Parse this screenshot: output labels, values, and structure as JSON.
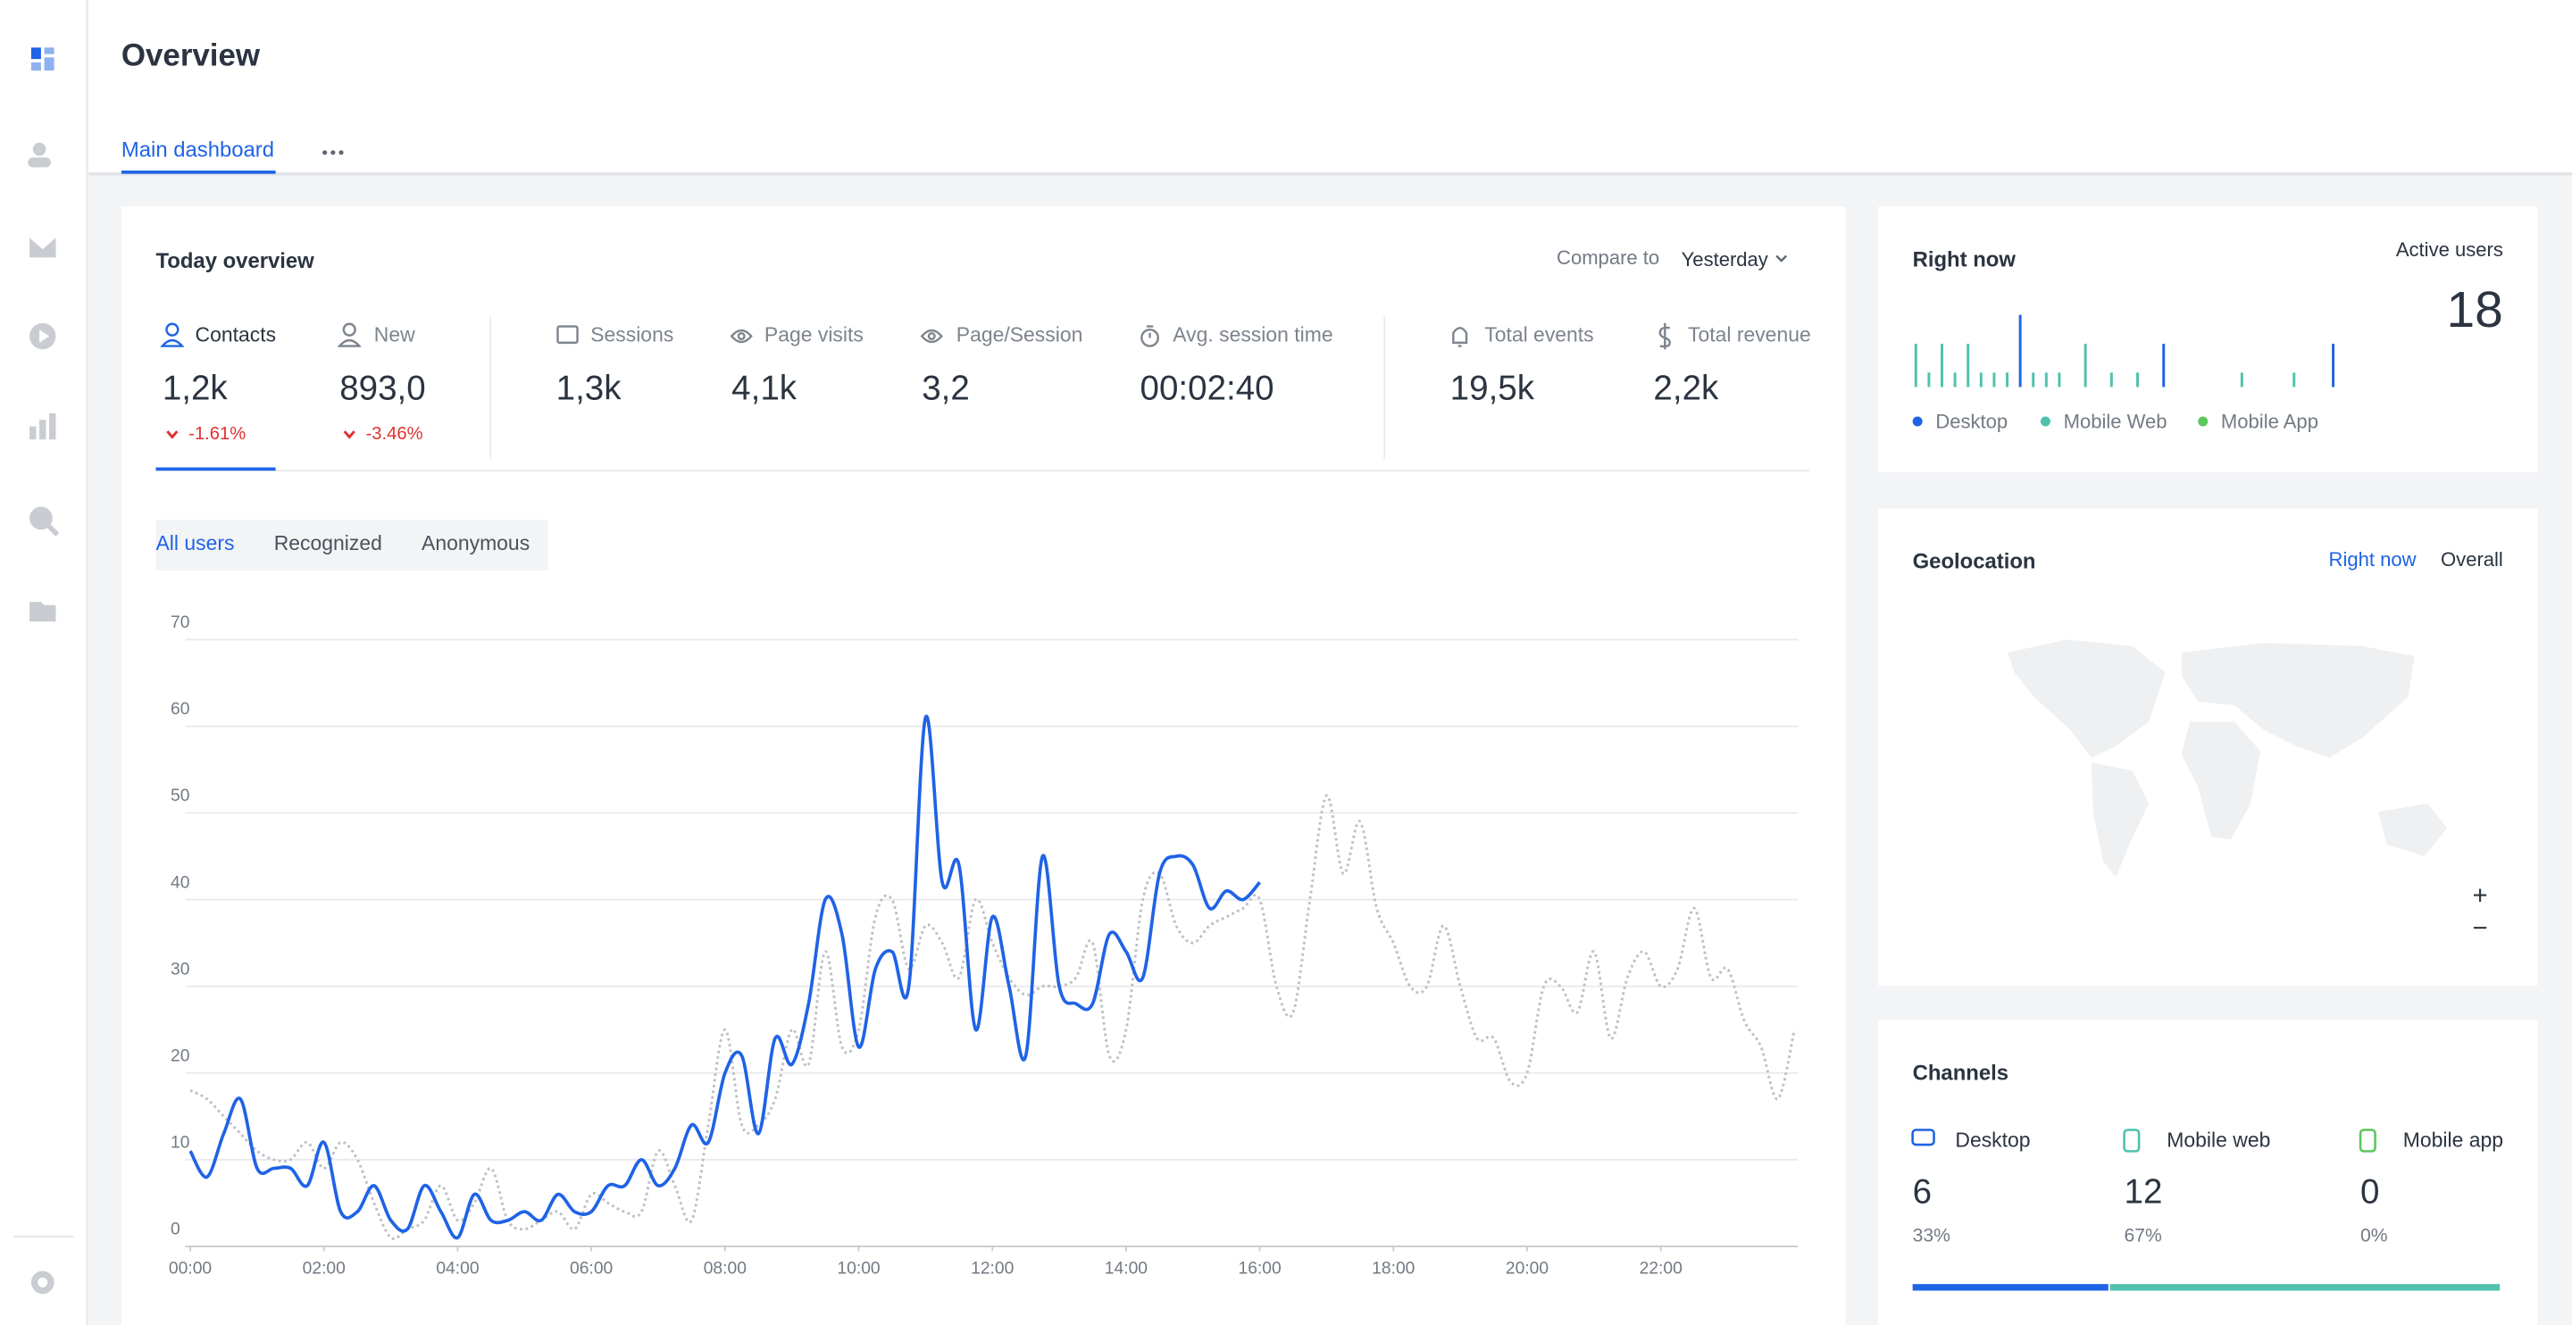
{
  "header": {
    "title": "Overview"
  },
  "tabs": [
    "Main dashboard"
  ],
  "today_overview": {
    "title": "Today overview",
    "compare_label": "Compare to",
    "compare_value": "Yesterday",
    "metrics": [
      {
        "label": "Contacts",
        "value": "1,2k",
        "change": "-1.61%"
      },
      {
        "label": "New",
        "value": "893,0",
        "change": "-3.46%"
      },
      {
        "label": "Sessions",
        "value": "1,3k"
      },
      {
        "label": "Page visits",
        "value": "4,1k"
      },
      {
        "label": "Page/Session",
        "value": "3,2"
      },
      {
        "label": "Avg. session time",
        "value": "00:02:40"
      },
      {
        "label": "Total events",
        "value": "19,5k"
      },
      {
        "label": "Total revenue",
        "value": "2,2k"
      }
    ]
  },
  "segments": [
    "All users",
    "Recognized",
    "Anonymous"
  ],
  "chart_data": {
    "type": "line",
    "x": [
      0,
      0.25,
      0.5,
      0.75,
      1,
      1.25,
      1.5,
      1.75,
      2,
      2.25,
      2.5,
      2.75,
      3,
      3.25,
      3.5,
      3.75,
      4,
      4.25,
      4.5,
      4.75,
      5,
      5.25,
      5.5,
      5.75,
      6,
      6.25,
      6.5,
      6.75,
      7,
      7.25,
      7.5,
      7.75,
      8,
      8.25,
      8.5,
      8.75,
      9,
      9.25,
      9.5,
      9.75,
      10,
      10.25,
      10.5,
      10.75,
      11,
      11.25,
      11.5,
      11.75,
      12,
      12.25,
      12.5,
      12.75,
      13,
      13.25,
      13.5,
      13.75,
      14,
      14.25,
      14.5,
      14.75,
      15,
      15.25,
      15.5,
      15.75,
      16,
      16.25,
      16.5,
      16.75,
      17,
      17.25,
      17.5,
      17.75,
      18,
      18.25,
      18.5,
      18.75,
      19,
      19.25,
      19.5,
      19.75,
      20,
      20.25,
      20.5,
      20.75,
      21,
      21.25,
      21.5,
      21.75,
      22,
      22.25,
      22.5,
      22.75,
      23,
      23.25,
      23.5,
      23.75,
      24
    ],
    "xlim": [
      0,
      24
    ],
    "xticks": [
      {
        "value": 0,
        "label": "00:00"
      },
      {
        "value": 2,
        "label": "02:00"
      },
      {
        "value": 4,
        "label": "04:00"
      },
      {
        "value": 6,
        "label": "06:00"
      },
      {
        "value": 8,
        "label": "08:00"
      },
      {
        "value": 10,
        "label": "10:00"
      },
      {
        "value": 12,
        "label": "12:00"
      },
      {
        "value": 14,
        "label": "14:00"
      },
      {
        "value": 16,
        "label": "16:00"
      },
      {
        "value": 18,
        "label": "18:00"
      },
      {
        "value": 20,
        "label": "20:00"
      },
      {
        "value": 22,
        "label": "22:00"
      }
    ],
    "ylim": [
      0,
      70
    ],
    "yticks": [
      0,
      10,
      20,
      30,
      40,
      50,
      60,
      70
    ],
    "grid": true,
    "series": [
      {
        "color": "#bdbfc3",
        "style": "dotted",
        "values": [
          18,
          17,
          15,
          13,
          11,
          10,
          10,
          12,
          9,
          12,
          10,
          5,
          1,
          2,
          3,
          7,
          3,
          5,
          9,
          3,
          2,
          3,
          4,
          2,
          6,
          5,
          4,
          4,
          11,
          7,
          3,
          14,
          25,
          14,
          14,
          17,
          25,
          21,
          34,
          23,
          25,
          38,
          40,
          32,
          37,
          35,
          31,
          40,
          35,
          31,
          29,
          30,
          30,
          31,
          35,
          22,
          25,
          40,
          43,
          37,
          35,
          37,
          38,
          39,
          40,
          30,
          27,
          40,
          52,
          43,
          49,
          39,
          35,
          30,
          30,
          37,
          30,
          24,
          24,
          19,
          20,
          30,
          30,
          27,
          34,
          24,
          31,
          34,
          30,
          32,
          39,
          31,
          32,
          26,
          23,
          17,
          25
        ]
      },
      {
        "color": "#1f63e6",
        "style": "solid",
        "values": [
          11,
          8,
          13,
          17,
          9,
          9,
          9,
          7,
          12,
          4,
          4,
          7,
          3,
          2,
          7,
          4,
          1,
          6,
          3,
          3,
          4,
          3,
          6,
          4,
          4,
          7,
          7,
          10,
          7,
          9,
          14,
          12,
          20,
          22,
          13,
          24,
          21,
          28,
          40,
          36,
          23,
          32,
          34,
          30,
          61,
          42,
          44,
          25,
          38,
          30,
          22,
          45,
          30,
          28,
          28,
          36,
          34,
          31,
          43,
          45,
          44,
          39,
          41,
          40,
          42,
          null,
          null,
          null,
          null,
          null,
          null,
          null,
          null,
          null,
          null,
          null,
          null,
          null,
          null,
          null,
          null,
          null,
          null,
          null,
          null,
          null,
          null,
          null,
          null,
          null,
          null,
          null,
          null,
          null,
          null,
          null,
          null
        ]
      }
    ]
  },
  "right_now": {
    "title": "Right now",
    "active_label": "Active users",
    "active_value": "18",
    "legend": [
      {
        "name": "Desktop",
        "color": "#1f63e6"
      },
      {
        "name": "Mobile Web",
        "color": "#4fc1ad"
      },
      {
        "name": "Mobile App",
        "color": "#5bc75b"
      }
    ],
    "activity": {
      "values": [
        3,
        1,
        3,
        1,
        3,
        1,
        1,
        1,
        5,
        1,
        1,
        1,
        0,
        3,
        0,
        1,
        0,
        1,
        0,
        3,
        0,
        0,
        0,
        0,
        0,
        1,
        0,
        0,
        0,
        1,
        0,
        0,
        3
      ],
      "colors": [
        "#4fc1ad",
        "#4fc1ad",
        "#4fc1ad",
        "#4fc1ad",
        "#4fc1ad",
        "#4fc1ad",
        "#4fc1ad",
        "#4fc1ad",
        "#1f63e6",
        "#4fc1ad",
        "#4fc1ad",
        "#4fc1ad",
        "#4fc1ad",
        "#4fc1ad",
        "#4fc1ad",
        "#4fc1ad",
        "#4fc1ad",
        "#4fc1ad",
        "#4fc1ad",
        "#1f63e6",
        "#4fc1ad",
        "#4fc1ad",
        "#4fc1ad",
        "#4fc1ad",
        "#4fc1ad",
        "#4fc1ad",
        "#4fc1ad",
        "#4fc1ad",
        "#4fc1ad",
        "#4fc1ad",
        "#4fc1ad",
        "#4fc1ad",
        "#1f63e6"
      ]
    }
  },
  "geolocation": {
    "title": "Geolocation",
    "tabs": [
      "Right now",
      "Overall"
    ],
    "zoom": [
      "+",
      "−"
    ]
  },
  "channels": {
    "title": "Channels",
    "items": [
      {
        "name": "Desktop",
        "value": 6,
        "share": "33%",
        "color": "#1f63e6"
      },
      {
        "name": "Mobile web",
        "value": 12,
        "share": "67%",
        "color": "#4fc1ad"
      },
      {
        "name": "Mobile app",
        "value": 0,
        "share": "0%",
        "color": "#5bc75b"
      }
    ]
  }
}
